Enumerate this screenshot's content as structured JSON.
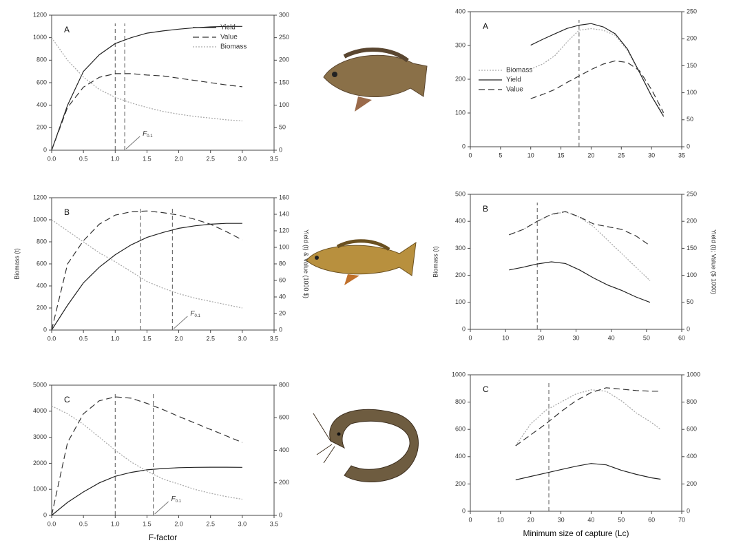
{
  "chart_data": [
    {
      "type": "line",
      "panel": "A",
      "legend": "upper right",
      "x": [
        0,
        0.25,
        0.5,
        0.75,
        1.0,
        1.25,
        1.5,
        1.75,
        2.0,
        2.25,
        2.5,
        2.75,
        3.0
      ],
      "xlim": [
        0,
        3.5
      ],
      "xticks": [
        {
          "value": 0,
          "label": "0.0"
        },
        {
          "value": 0.5,
          "label": "0.5"
        },
        {
          "value": 1,
          "label": "1.0"
        },
        {
          "value": 1.5,
          "label": "1.5"
        },
        {
          "value": 2,
          "label": "2.0"
        },
        {
          "value": 2.5,
          "label": "2.5"
        },
        {
          "value": 3,
          "label": "3.0"
        },
        {
          "value": 3.5,
          "label": "3.5"
        }
      ],
      "ylim": [
        0,
        1200
      ],
      "yticks": [
        0,
        200,
        400,
        600,
        800,
        1000,
        1200
      ],
      "y2lim": [
        0,
        300
      ],
      "y2ticks": [
        0,
        50,
        100,
        150,
        200,
        250,
        300
      ],
      "series": [
        {
          "name": "Yield",
          "style": "solid",
          "color": "#222222",
          "axis": "y2",
          "values": [
            0,
            100,
            175,
            212,
            237,
            250,
            260,
            265,
            269,
            272,
            274,
            275,
            275
          ]
        },
        {
          "name": "Value",
          "style": "dashed",
          "color": "#333333",
          "axis": "y2",
          "values": [
            0,
            95,
            140,
            162,
            170,
            170,
            167,
            165,
            160,
            155,
            150,
            145,
            141
          ]
        },
        {
          "name": "Biomass",
          "style": "dotted",
          "color": "#aaaaaa",
          "values": [
            1000,
            800,
            650,
            540,
            470,
            420,
            380,
            345,
            320,
            300,
            285,
            270,
            260
          ]
        }
      ],
      "vlines": [
        1.0,
        1.15
      ],
      "annotation": {
        "text": "F",
        "subscript": "0.1"
      }
    },
    {
      "type": "line",
      "panel": "B",
      "ylabel": "Biomass (t)",
      "y2label": "Yield (t) & Value (1000 $)",
      "x": [
        0,
        0.25,
        0.5,
        0.75,
        1.0,
        1.25,
        1.5,
        1.75,
        2.0,
        2.25,
        2.5,
        2.75,
        3.0
      ],
      "xlim": [
        0,
        3.5
      ],
      "xticks": [
        {
          "value": 0,
          "label": "0.0"
        },
        {
          "value": 0.5,
          "label": "0.5"
        },
        {
          "value": 1,
          "label": "1.0"
        },
        {
          "value": 1.5,
          "label": "1.5"
        },
        {
          "value": 2,
          "label": "2.0"
        },
        {
          "value": 2.5,
          "label": "2.5"
        },
        {
          "value": 3,
          "label": "3.0"
        },
        {
          "value": 3.5,
          "label": "3.5"
        }
      ],
      "ylim": [
        0,
        1200
      ],
      "yticks": [
        0,
        200,
        400,
        600,
        800,
        1000,
        1200
      ],
      "y2lim": [
        0,
        160
      ],
      "y2ticks": [
        0,
        20,
        40,
        60,
        80,
        100,
        120,
        140,
        160
      ],
      "series": [
        {
          "name": "Yield",
          "style": "solid",
          "color": "#222222",
          "axis": "y2",
          "values": [
            0,
            30,
            57,
            76,
            91,
            103,
            112,
            118,
            123,
            126,
            128,
            129,
            129
          ]
        },
        {
          "name": "Value",
          "style": "dashed",
          "color": "#333333",
          "axis": "y2",
          "values": [
            0,
            80,
            108,
            128,
            139,
            143,
            144,
            142,
            139,
            134,
            128,
            119,
            109
          ]
        },
        {
          "name": "Biomass",
          "style": "dotted",
          "color": "#aaaaaa",
          "values": [
            1000,
            900,
            800,
            700,
            620,
            530,
            440,
            380,
            330,
            290,
            260,
            230,
            200
          ]
        }
      ],
      "vlines": [
        1.4,
        1.9
      ],
      "annotation": {
        "text": "F",
        "subscript": "0.1"
      }
    },
    {
      "type": "line",
      "panel": "C",
      "xlabel": "F-factor",
      "x": [
        0,
        0.25,
        0.5,
        0.75,
        1.0,
        1.25,
        1.5,
        1.75,
        2.0,
        2.25,
        2.5,
        2.75,
        3.0
      ],
      "xlim": [
        0,
        3.5
      ],
      "xticks": [
        {
          "value": 0,
          "label": "0.0"
        },
        {
          "value": 0.5,
          "label": "0.5"
        },
        {
          "value": 1,
          "label": "1.0"
        },
        {
          "value": 1.5,
          "label": "1.5"
        },
        {
          "value": 2,
          "label": "2.0"
        },
        {
          "value": 2.5,
          "label": "2.5"
        },
        {
          "value": 3,
          "label": "3.0"
        },
        {
          "value": 3.5,
          "label": "3.5"
        }
      ],
      "ylim": [
        0,
        5000
      ],
      "yticks": [
        0,
        1000,
        2000,
        3000,
        4000,
        5000
      ],
      "y2lim": [
        0,
        800
      ],
      "y2ticks": [
        0,
        200,
        400,
        600,
        800
      ],
      "series": [
        {
          "name": "Yield",
          "style": "solid",
          "color": "#222222",
          "axis": "y2",
          "values": [
            0,
            80,
            144,
            200,
            240,
            264,
            280,
            288,
            293,
            295,
            296,
            296,
            295
          ]
        },
        {
          "name": "Value",
          "style": "dashed",
          "color": "#333333",
          "axis": "y2",
          "values": [
            0,
            448,
            624,
            704,
            728,
            720,
            688,
            650,
            608,
            568,
            528,
            488,
            448
          ]
        },
        {
          "name": "Biomass",
          "style": "dotted",
          "color": "#aaaaaa",
          "values": [
            4200,
            3900,
            3500,
            3000,
            2500,
            2050,
            1700,
            1400,
            1200,
            1000,
            850,
            720,
            620
          ]
        }
      ],
      "vlines": [
        1.0,
        1.6
      ],
      "annotation": {
        "text": "F",
        "subscript": "0.1"
      }
    },
    {
      "type": "line",
      "panel": "A",
      "legend": "center left",
      "x": [
        10,
        12,
        14,
        16,
        18,
        20,
        22,
        24,
        26,
        28,
        30,
        32
      ],
      "xlim": [
        0,
        35
      ],
      "xticks": [
        0,
        5,
        10,
        15,
        20,
        25,
        30,
        35
      ],
      "ylim": [
        0,
        400
      ],
      "yticks": [
        0,
        100,
        200,
        300,
        400
      ],
      "y2lim": [
        0,
        250
      ],
      "y2ticks": [
        0,
        50,
        100,
        150,
        200,
        250
      ],
      "series": [
        {
          "name": "Biomass",
          "style": "dotted",
          "color": "#aaaaaa",
          "values": [
            230,
            245,
            270,
            310,
            345,
            350,
            345,
            330,
            285,
            220,
            150,
            95
          ]
        },
        {
          "name": "Yield",
          "style": "solid",
          "color": "#222222",
          "axis": "y2",
          "values": [
            188,
            199,
            209,
            219,
            225,
            228,
            222,
            209,
            181,
            138,
            94,
            56
          ]
        },
        {
          "name": "Value",
          "style": "dashed",
          "color": "#333333",
          "axis": "y2",
          "values": [
            89,
            97,
            106,
            119,
            131,
            143,
            153,
            159,
            156,
            141,
            106,
            63
          ]
        }
      ],
      "vlines": [
        18
      ]
    },
    {
      "type": "line",
      "panel": "B",
      "ylabel": "Biomass (t)",
      "y2label": "Yield (t); Value ($ 1000)",
      "x": [
        11,
        15,
        19,
        23,
        27,
        31,
        35,
        39,
        43,
        47,
        51
      ],
      "xlim": [
        0,
        60
      ],
      "xticks": [
        0,
        10,
        20,
        30,
        40,
        50,
        60
      ],
      "ylim": [
        0,
        500
      ],
      "yticks": [
        0,
        100,
        200,
        300,
        400,
        500
      ],
      "y2lim": [
        0,
        250
      ],
      "y2ticks": [
        0,
        50,
        100,
        150,
        200,
        250
      ],
      "series": [
        {
          "name": "Biomass",
          "style": "dotted",
          "color": "#aaaaaa",
          "values": [
            350,
            370,
            400,
            425,
            435,
            415,
            380,
            330,
            280,
            230,
            180
          ]
        },
        {
          "name": "Yield",
          "style": "solid",
          "color": "#222222",
          "axis": "y2",
          "values": [
            110,
            115,
            121,
            125,
            122,
            110,
            95,
            82,
            72,
            60,
            50
          ]
        },
        {
          "name": "Value",
          "style": "dashed",
          "color": "#333333",
          "axis": "y2",
          "values": [
            175,
            185,
            200,
            213,
            218,
            208,
            195,
            190,
            185,
            173,
            155
          ]
        }
      ],
      "vlines": [
        19
      ]
    },
    {
      "type": "line",
      "panel": "C",
      "xlabel": "Minimum size of capture (Lc)",
      "x": [
        15,
        20,
        25,
        30,
        35,
        40,
        45,
        50,
        55,
        60,
        63
      ],
      "xlim": [
        0,
        70
      ],
      "xticks": [
        0,
        10,
        20,
        30,
        40,
        50,
        60,
        70
      ],
      "ylim": [
        0,
        1000
      ],
      "yticks": [
        0,
        200,
        400,
        600,
        800,
        1000
      ],
      "y2lim": [
        0,
        1000
      ],
      "y2ticks": [
        0,
        200,
        400,
        600,
        800,
        1000
      ],
      "series": [
        {
          "name": "Biomass",
          "style": "dotted",
          "color": "#aaaaaa",
          "values": [
            480,
            640,
            740,
            800,
            860,
            890,
            880,
            810,
            720,
            650,
            600
          ]
        },
        {
          "name": "Yield",
          "style": "solid",
          "color": "#222222",
          "axis": "y2",
          "values": [
            230,
            255,
            280,
            305,
            330,
            350,
            340,
            300,
            270,
            245,
            235
          ]
        },
        {
          "name": "Value",
          "style": "dashed",
          "color": "#333333",
          "axis": "y2",
          "values": [
            480,
            560,
            640,
            730,
            810,
            870,
            905,
            895,
            885,
            880,
            880
          ]
        }
      ],
      "vlines": [
        26
      ]
    }
  ]
}
